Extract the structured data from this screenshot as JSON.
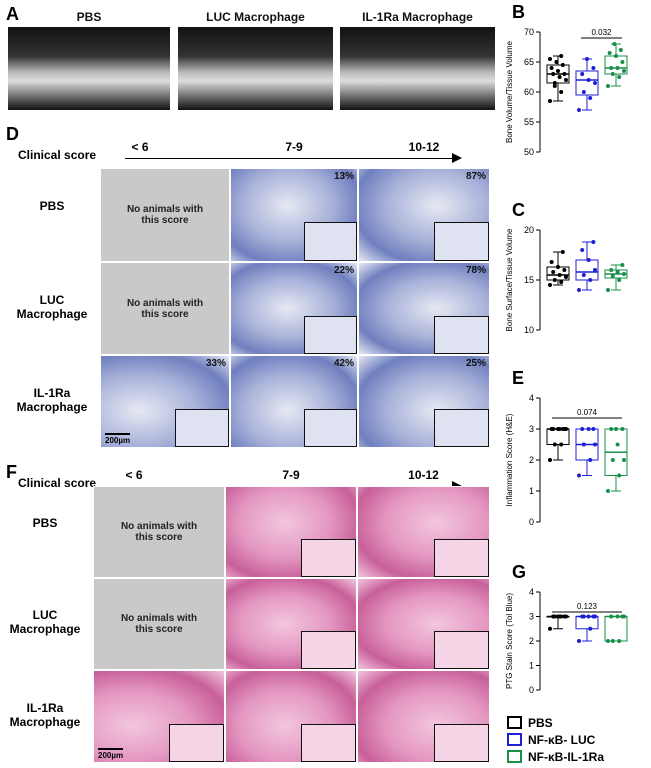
{
  "panel_a": {
    "label": "A",
    "titles": [
      "PBS",
      "LUC Macrophage",
      "IL-1Ra Macrophage"
    ]
  },
  "panel_d": {
    "label": "D",
    "axis_title": "Clinical score",
    "columns": [
      "< 6",
      "7-9",
      "10-12"
    ],
    "rows": [
      "PBS",
      "LUC Macrophage",
      "IL-1Ra Macrophage"
    ],
    "empty_text": "No animals with this score",
    "percentages": [
      [
        null,
        "13%",
        "87%"
      ],
      [
        null,
        "22%",
        "78%"
      ],
      [
        "33%",
        "42%",
        "25%"
      ]
    ],
    "scale_bar": "200µm"
  },
  "panel_f": {
    "label": "F",
    "axis_title": "Clinical score",
    "columns": [
      "< 6",
      "7-9",
      "10-12"
    ],
    "rows": [
      "PBS",
      "LUC Macrophage",
      "IL-1Ra Macrophage"
    ],
    "empty_text": "No animals with this score",
    "scale_bar": "200µm"
  },
  "chart_data": [
    {
      "type": "box",
      "panel": "B",
      "ylabel": "Bone Volume/Tissue Volume",
      "ylim": [
        50,
        70
      ],
      "yticks": [
        50,
        55,
        60,
        65,
        70
      ],
      "annotation": "0.032",
      "series": [
        {
          "color": "#000000",
          "min": 58.5,
          "q1": 61.5,
          "median": 63,
          "q3": 64.5,
          "max": 66,
          "points": [
            58.5,
            60,
            61,
            62,
            62.5,
            63,
            63,
            63.5,
            64,
            64.5,
            65,
            65.5,
            66,
            61.5
          ]
        },
        {
          "color": "#1f1fd6",
          "min": 57,
          "q1": 59.5,
          "median": 62,
          "q3": 63.5,
          "max": 65.5,
          "points": [
            57,
            59,
            60,
            61.5,
            62,
            63,
            64,
            65.5
          ]
        },
        {
          "color": "#1a8f4a",
          "min": 61,
          "q1": 63,
          "median": 64,
          "q3": 66,
          "max": 68,
          "points": [
            61,
            62.5,
            63,
            63.5,
            64,
            64,
            65,
            66,
            66.5,
            67,
            68
          ]
        }
      ]
    },
    {
      "type": "box",
      "panel": "C",
      "ylabel": "Bone Surface/Tissue Volume",
      "ylim": [
        10,
        20
      ],
      "yticks": [
        10,
        15,
        20
      ],
      "series": [
        {
          "color": "#000000",
          "min": 14.5,
          "q1": 15,
          "median": 15.5,
          "q3": 16.3,
          "max": 17.8,
          "points": [
            14.5,
            14.8,
            15,
            15.3,
            15.5,
            15.8,
            16,
            16.3,
            16.8,
            17.8
          ]
        },
        {
          "color": "#1f1fd6",
          "min": 14,
          "q1": 15,
          "median": 15.8,
          "q3": 17,
          "max": 18.8,
          "points": [
            14,
            15,
            15.5,
            16,
            17,
            18,
            18.8
          ]
        },
        {
          "color": "#1a8f4a",
          "min": 14,
          "q1": 15.2,
          "median": 15.6,
          "q3": 16,
          "max": 16.5,
          "points": [
            14,
            15,
            15.4,
            15.6,
            15.8,
            16,
            16.5
          ]
        }
      ]
    },
    {
      "type": "box",
      "panel": "E",
      "ylabel": "Inflammation Score (H&E)",
      "ylim": [
        0,
        4
      ],
      "yticks": [
        0,
        1,
        2,
        3,
        4
      ],
      "annotation": "0.074",
      "series": [
        {
          "color": "#000000",
          "min": 2,
          "q1": 2.5,
          "median": 3,
          "q3": 3,
          "max": 3,
          "points": [
            2,
            2.5,
            2.5,
            3,
            3,
            3,
            3,
            3,
            3,
            3
          ]
        },
        {
          "color": "#1f1fd6",
          "min": 1.5,
          "q1": 2,
          "median": 2.5,
          "q3": 3,
          "max": 3,
          "points": [
            1.5,
            2,
            2.5,
            2.5,
            3,
            3,
            3
          ]
        },
        {
          "color": "#1a8f4a",
          "min": 1,
          "q1": 1.5,
          "median": 2.25,
          "q3": 3,
          "max": 3,
          "points": [
            1,
            1.5,
            2,
            2,
            2.5,
            3,
            3,
            3
          ]
        }
      ]
    },
    {
      "type": "box",
      "panel": "G",
      "ylabel": "PTG Stain Score (Tol Blue)",
      "ylim": [
        0,
        4
      ],
      "yticks": [
        0,
        1,
        2,
        3,
        4
      ],
      "annotation": "0.123",
      "series": [
        {
          "color": "#000000",
          "min": 2.5,
          "q1": 3,
          "median": 3,
          "q3": 3,
          "max": 3,
          "points": [
            2.5,
            3,
            3,
            3,
            3,
            3,
            3,
            3
          ]
        },
        {
          "color": "#1f1fd6",
          "min": 2,
          "q1": 2.5,
          "median": 3,
          "q3": 3,
          "max": 3,
          "points": [
            2,
            2.5,
            3,
            3,
            3,
            3,
            3
          ]
        },
        {
          "color": "#1a8f4a",
          "min": 2,
          "q1": 2,
          "median": 3,
          "q3": 3,
          "max": 3,
          "points": [
            2,
            2,
            2,
            3,
            3,
            3,
            3
          ]
        }
      ]
    }
  ],
  "legend": [
    "PBS",
    "NF-κB- LUC",
    "NF-κB-IL-1Ra"
  ]
}
